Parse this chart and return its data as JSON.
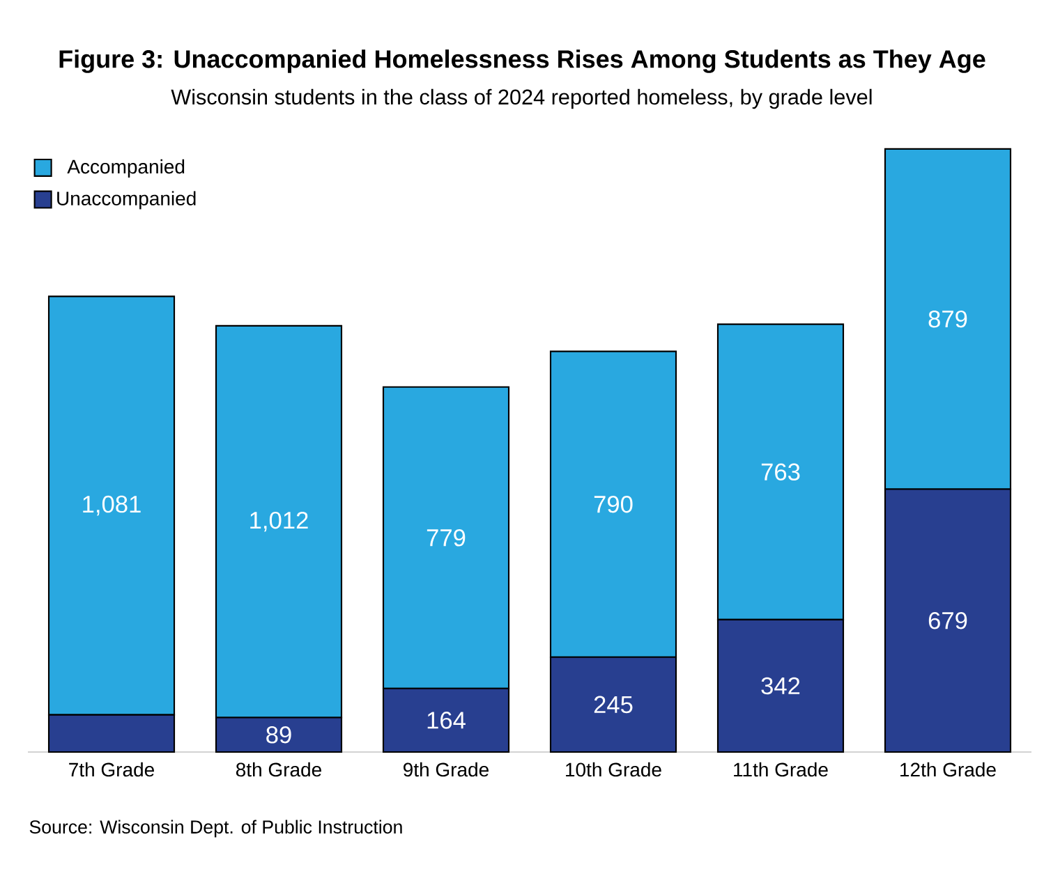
{
  "chart_data": {
    "type": "bar",
    "stacked": true,
    "title": "Figure 3: Unaccompanied Homelessness Rises Among Students as They Age",
    "subtitle": "Wisconsin students in the class of 2024 reported homeless, by grade level",
    "categories": [
      "7th Grade",
      "8th Grade",
      "9th Grade",
      "10th Grade",
      "11th Grade",
      "12th Grade"
    ],
    "series": [
      {
        "name": "Unaccompanied",
        "color": "#283f90",
        "values": [
          96,
          89,
          164,
          245,
          342,
          679
        ],
        "value_labels": [
          null,
          "89",
          "164",
          "245",
          "342",
          "679"
        ]
      },
      {
        "name": "Accompanied",
        "color": "#29a8e0",
        "values": [
          1081,
          1012,
          779,
          790,
          763,
          879
        ],
        "value_labels": [
          "1,081",
          "1,012",
          "779",
          "790",
          "763",
          "879"
        ]
      }
    ],
    "legend": "top left",
    "tick_labels": "x",
    "annotations": [
      "Source: Wisconsin Dept. of Public Instruction"
    ]
  }
}
